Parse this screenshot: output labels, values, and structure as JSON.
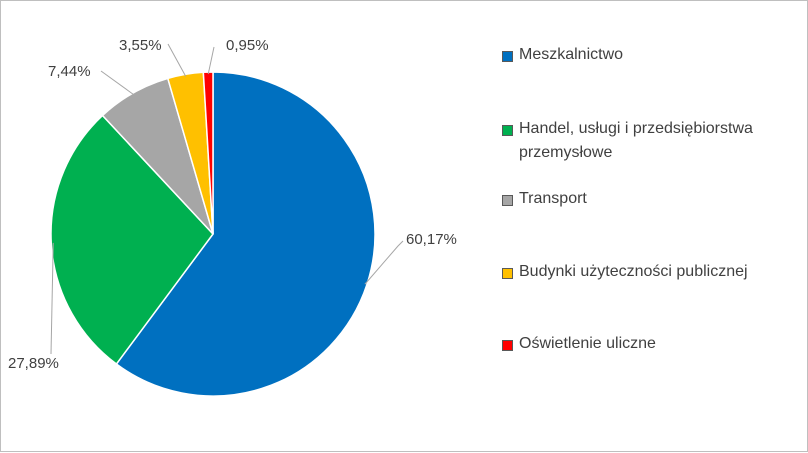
{
  "chart_data": {
    "type": "pie",
    "slices": [
      {
        "name": "Meszkalnictwo",
        "value": 60.17,
        "label": "60,17%",
        "color": "#0070C0"
      },
      {
        "name": "Handel, usługi i przedsiębiorstwa przemysłowe",
        "value": 27.89,
        "label": "27,89%",
        "color": "#00B050"
      },
      {
        "name": "Transport",
        "value": 7.44,
        "label": "7,44%",
        "color": "#A6A6A6"
      },
      {
        "name": "Budynki użyteczności publicznej",
        "value": 3.55,
        "label": "3,55%",
        "color": "#FFC000"
      },
      {
        "name": "Oświetlenie uliczne",
        "value": 0.95,
        "label": "0,95%",
        "color": "#FF0000"
      }
    ],
    "start": "12 o'clock, clockwise",
    "legend_position": "right"
  }
}
